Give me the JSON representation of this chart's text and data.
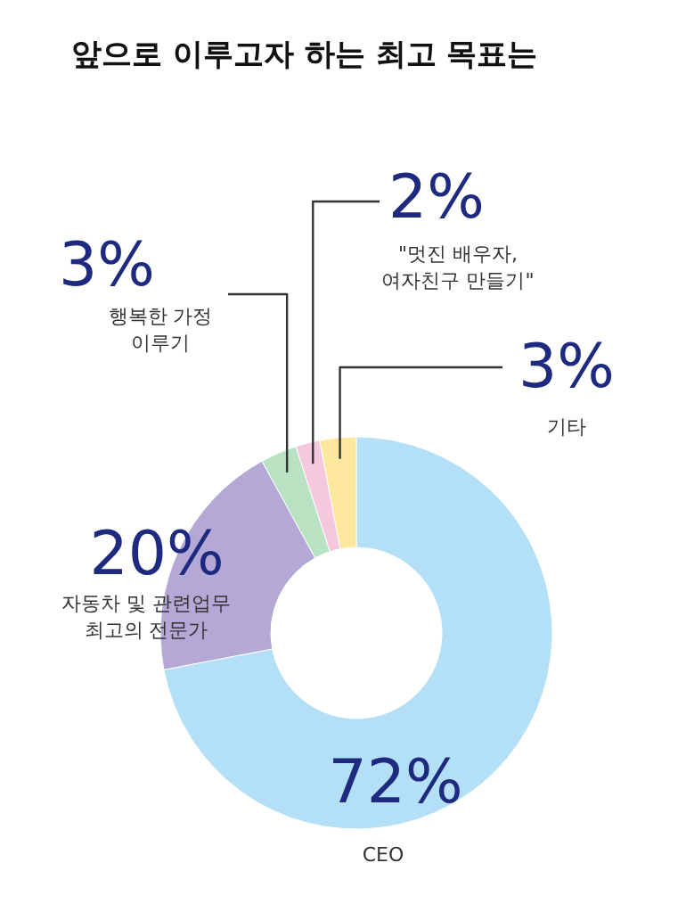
{
  "chart_data": {
    "type": "donut",
    "title": "앞으로 이루고자 하는 최고 목표는",
    "categories": [
      "CEO",
      "자동차 및 관련업무\n최고의 전문가",
      "행복한 가정\n이루기",
      "\"멋진 배우자,\n여자친구 만들기\"",
      "기타"
    ],
    "values": [
      72,
      20,
      3,
      2,
      3
    ],
    "colors": [
      "#b3e0f7",
      "#b4a9d6",
      "#b9e2c2",
      "#f6c8de",
      "#fce79c"
    ],
    "value_labels": [
      "72%",
      "20%",
      "3%",
      "2%",
      "3%"
    ]
  }
}
